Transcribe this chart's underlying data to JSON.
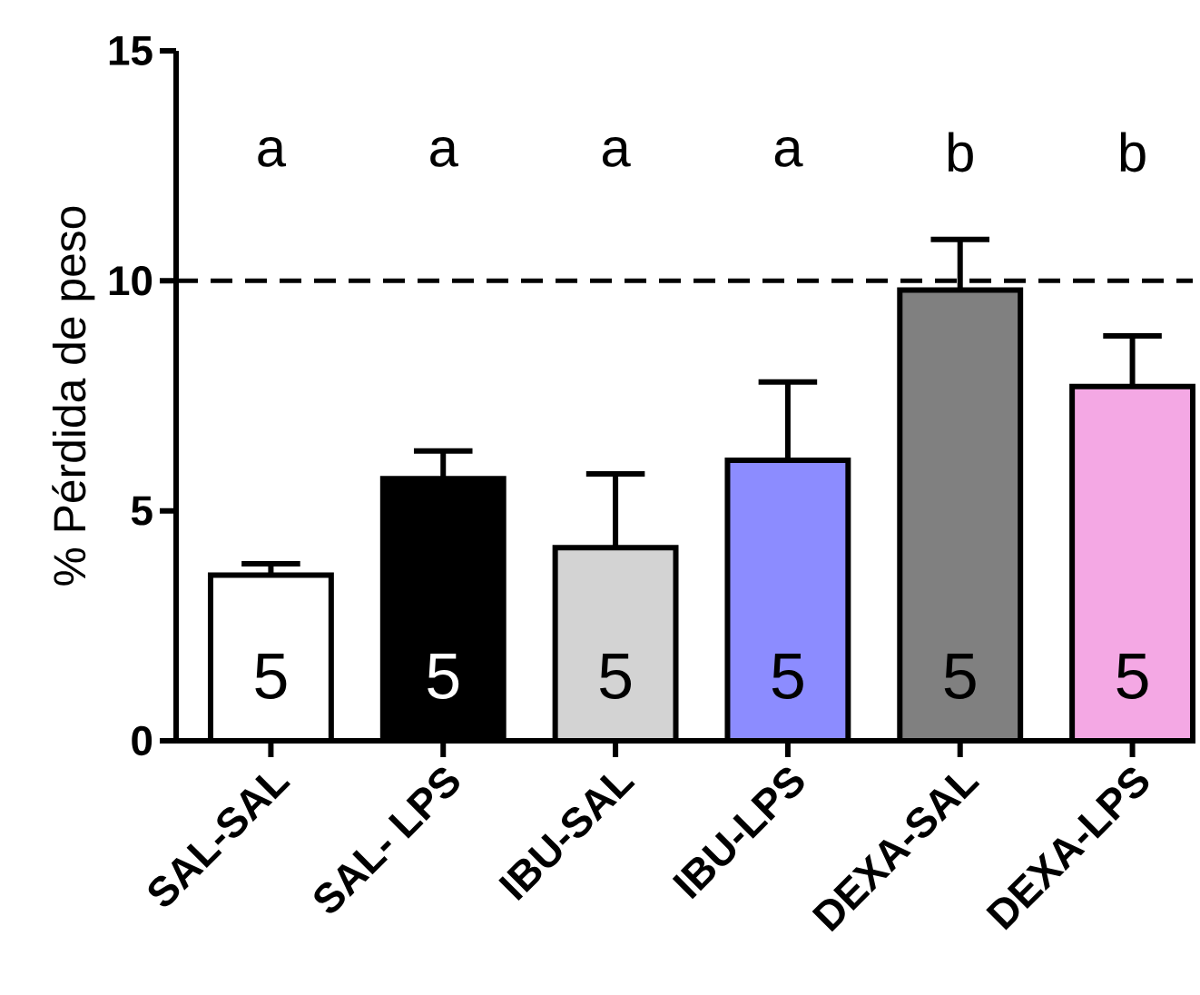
{
  "chart_data": {
    "type": "bar",
    "ylabel": "% Pérdida de peso",
    "categories": [
      "SAL-SAL",
      "SAL- LPS",
      "IBU-SAL",
      "IBU-LPS",
      "DEXA-SAL",
      "DEXA-LPS"
    ],
    "values": [
      3.6,
      5.7,
      4.2,
      6.1,
      9.8,
      7.7
    ],
    "colors": [
      "#ffffff",
      "#000000",
      "#d3d3d3",
      "#8c8cff",
      "#808080",
      "#f4a8e4"
    ],
    "errors": [
      [
        3.6,
        3.85
      ],
      [
        5.7,
        6.3
      ],
      [
        4.2,
        5.8
      ],
      [
        6.1,
        7.8
      ],
      [
        9.8,
        10.9
      ],
      [
        7.7,
        8.8
      ]
    ],
    "ylim": [
      0,
      15
    ],
    "yticks": [
      0,
      5,
      10,
      15
    ],
    "grid": false,
    "ref_lines": [
      {
        "axis": "y",
        "value": 10,
        "line_style": "dashed",
        "color": "#000000"
      }
    ],
    "annotations": [
      "a",
      "a",
      "a",
      "a",
      "b",
      "b",
      "5",
      "5",
      "5",
      "5",
      "5",
      "5"
    ]
  }
}
